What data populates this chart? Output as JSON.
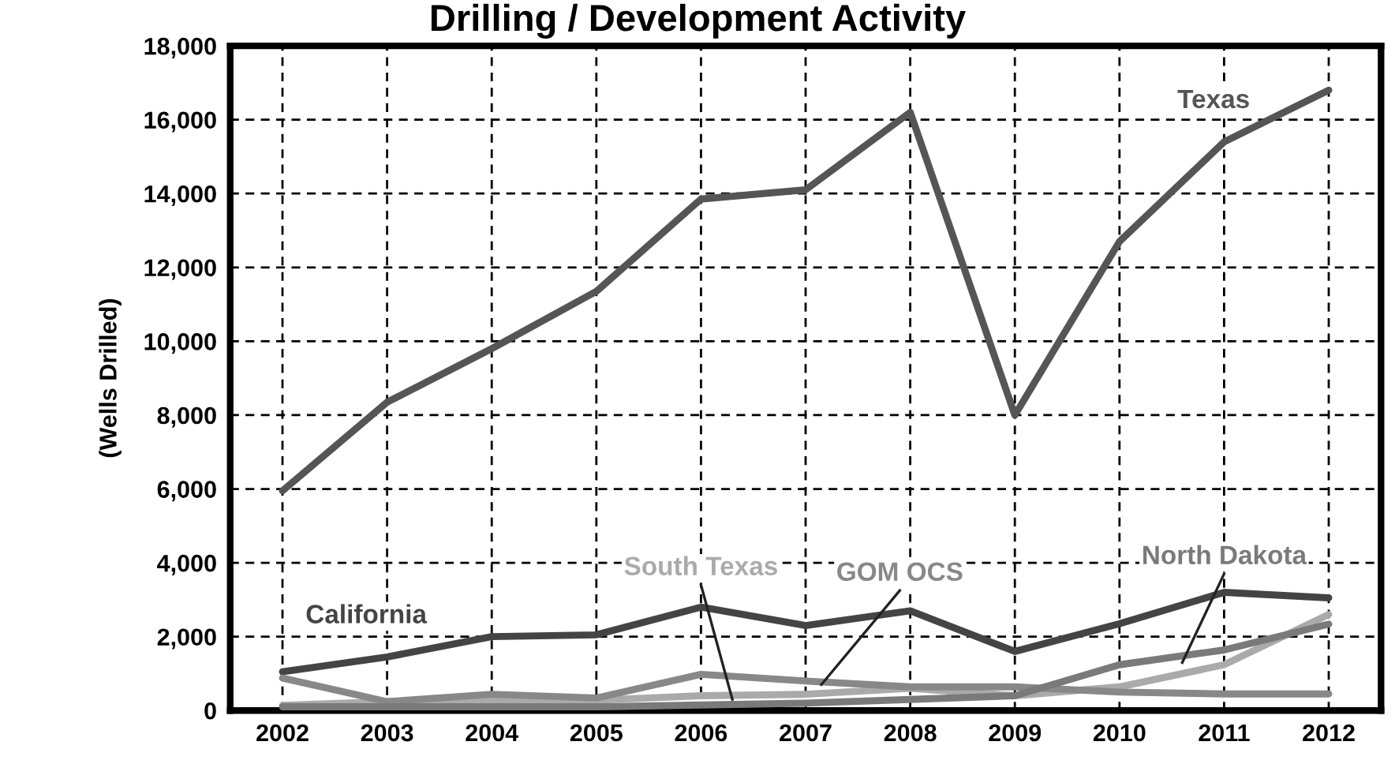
{
  "chart_data": {
    "type": "line",
    "title": "Drilling / Development Activity",
    "ylabel": "(Wells Drilled)",
    "categories": [
      "2002",
      "2003",
      "2004",
      "2005",
      "2006",
      "2007",
      "2008",
      "2009",
      "2010",
      "2011",
      "2012"
    ],
    "series": [
      {
        "name": "Texas",
        "color": "#555555",
        "values": [
          5950,
          8350,
          9800,
          11350,
          13850,
          14100,
          16200,
          8000,
          12700,
          15400,
          16800
        ]
      },
      {
        "name": "California",
        "color": "#444444",
        "values": [
          1050,
          1450,
          2000,
          2050,
          2800,
          2300,
          2700,
          1600,
          2350,
          3200,
          3050
        ]
      },
      {
        "name": "South Texas",
        "color": "#aaaaaa",
        "values": [
          140,
          240,
          280,
          280,
          400,
          440,
          600,
          400,
          640,
          1240,
          2600
        ]
      },
      {
        "name": "GOM OCS",
        "color": "#888888",
        "values": [
          880,
          240,
          440,
          340,
          980,
          800,
          640,
          640,
          500,
          450,
          450
        ]
      },
      {
        "name": "North Dakota",
        "color": "#7a7a7a",
        "values": [
          100,
          100,
          100,
          100,
          150,
          200,
          300,
          400,
          1240,
          1640,
          2340
        ]
      }
    ],
    "ylim": [
      0,
      18000
    ],
    "yticks": [
      {
        "value": 0,
        "label": "0"
      },
      {
        "value": 2000,
        "label": "2,000"
      },
      {
        "value": 4000,
        "label": "4,000"
      },
      {
        "value": 6000,
        "label": "6,000"
      },
      {
        "value": 8000,
        "label": "8,000"
      },
      {
        "value": 10000,
        "label": "10,000"
      },
      {
        "value": 12000,
        "label": "12,000"
      },
      {
        "value": 14000,
        "label": "14,000"
      },
      {
        "value": 16000,
        "label": "16,000"
      },
      {
        "value": 18000,
        "label": "18,000"
      }
    ],
    "grid": true,
    "legend": false,
    "marker": "none",
    "line_style": "solid"
  }
}
